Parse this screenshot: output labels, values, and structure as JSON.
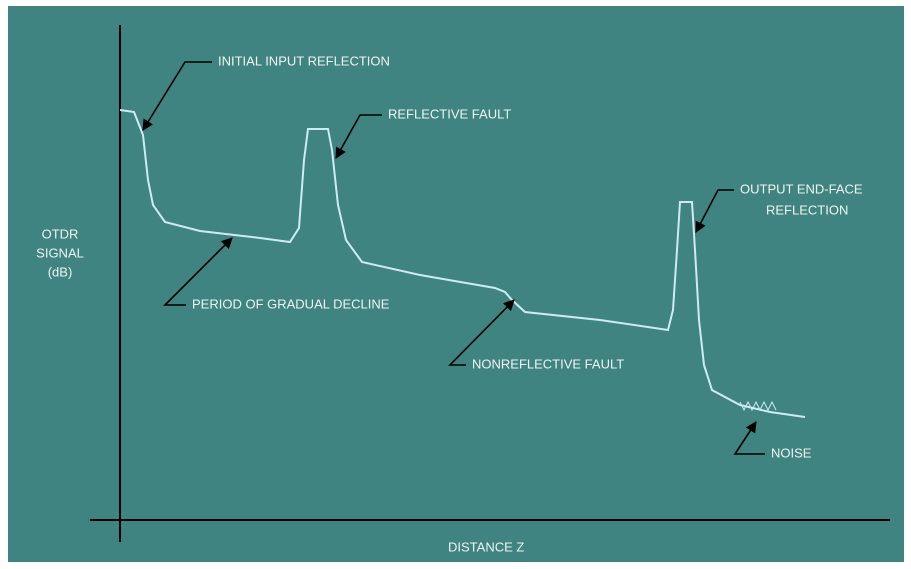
{
  "axes": {
    "y_label": [
      "OTDR",
      "SIGNAL",
      "(dB)"
    ],
    "x_label": "DISTANCE Z"
  },
  "annotations": {
    "initial_input_reflection": "INITIAL INPUT REFLECTION",
    "reflective_fault": "REFLECTIVE FAULT",
    "output_end_face_reflection": [
      "OUTPUT END-FACE",
      "REFLECTION"
    ],
    "period_of_gradual_decline": "PERIOD OF GRADUAL DECLINE",
    "nonreflective_fault": "NONREFLECTIVE FAULT",
    "noise": "NOISE"
  }
}
